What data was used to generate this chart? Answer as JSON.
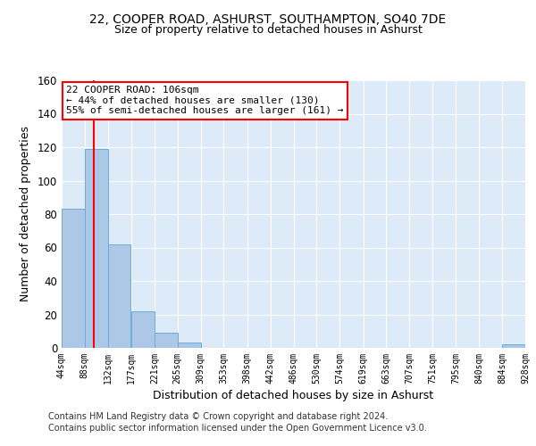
{
  "title_line1": "22, COOPER ROAD, ASHURST, SOUTHAMPTON, SO40 7DE",
  "title_line2": "Size of property relative to detached houses in Ashurst",
  "xlabel": "Distribution of detached houses by size in Ashurst",
  "ylabel": "Number of detached properties",
  "bin_edges": [
    44,
    88,
    132,
    177,
    221,
    265,
    309,
    353,
    398,
    442,
    486,
    530,
    574,
    619,
    663,
    707,
    751,
    795,
    840,
    884,
    928
  ],
  "bar_heights": [
    83,
    119,
    62,
    22,
    9,
    3,
    0,
    0,
    0,
    0,
    0,
    0,
    0,
    0,
    0,
    0,
    0,
    0,
    0,
    2
  ],
  "bar_color": "#adc8e6",
  "bar_edge_color": "#6aaed6",
  "red_line_x": 106,
  "ylim": [
    0,
    160
  ],
  "yticks": [
    0,
    20,
    40,
    60,
    80,
    100,
    120,
    140,
    160
  ],
  "annotation_box_text": "22 COOPER ROAD: 106sqm\n← 44% of detached houses are smaller (130)\n55% of semi-detached houses are larger (161) →",
  "footer_line1": "Contains HM Land Registry data © Crown copyright and database right 2024.",
  "footer_line2": "Contains public sector information licensed under the Open Government Licence v3.0.",
  "background_color": "#ffffff",
  "plot_bg_color": "#ddeaf7",
  "grid_color": "#ffffff",
  "tick_labels": [
    "44sqm",
    "88sqm",
    "132sqm",
    "177sqm",
    "221sqm",
    "265sqm",
    "309sqm",
    "353sqm",
    "398sqm",
    "442sqm",
    "486sqm",
    "530sqm",
    "574sqm",
    "619sqm",
    "663sqm",
    "707sqm",
    "751sqm",
    "795sqm",
    "840sqm",
    "884sqm",
    "928sqm"
  ]
}
